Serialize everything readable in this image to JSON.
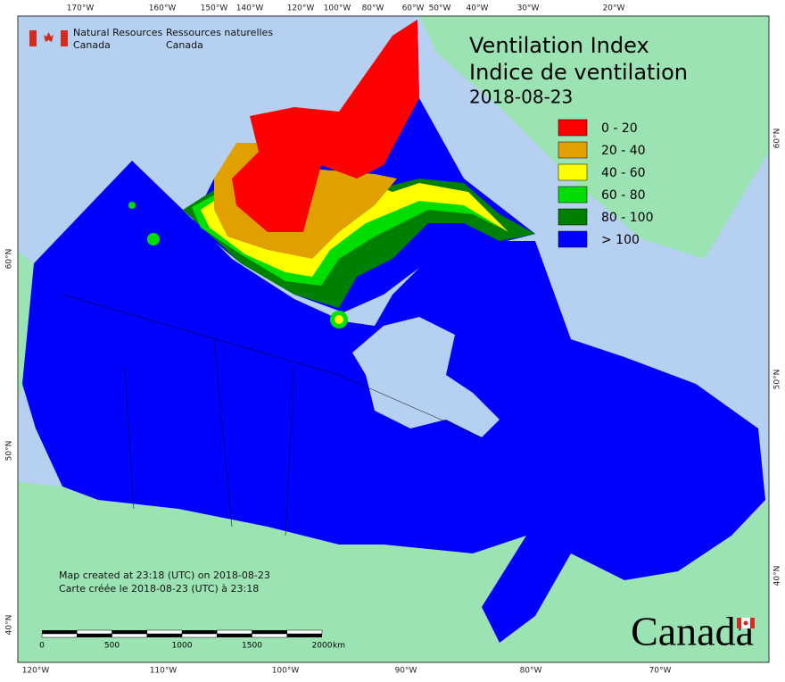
{
  "header": {
    "title_en": "Ventilation Index",
    "title_fr": "Indice de ventilation",
    "date": "2018-08-23"
  },
  "agency": {
    "en_line1": "Natural Resources",
    "en_line2": "Canada",
    "fr_line1": "Ressources naturelles",
    "fr_line2": "Canada"
  },
  "legend": {
    "items": [
      {
        "label": "0 - 20",
        "color": "#ff0000"
      },
      {
        "label": "20 - 40",
        "color": "#e0a000"
      },
      {
        "label": "40 - 60",
        "color": "#ffff00"
      },
      {
        "label": "60 - 80",
        "color": "#00dd00"
      },
      {
        "label": "80 - 100",
        "color": "#008000"
      },
      {
        "label": "> 100",
        "color": "#0000ff"
      }
    ]
  },
  "notes": {
    "line1": "Map created at 23:18 (UTC) on 2018-08-23",
    "line2": "Carte créée le 2018-08-23 (UTC) à 23:18"
  },
  "scale_bar": {
    "ticks": [
      "0",
      "500",
      "1000",
      "1500",
      "2000"
    ],
    "unit": "km"
  },
  "graticule": {
    "top": [
      "170°W",
      "160°W",
      "150°W",
      "140°W",
      "120°W",
      "100°W",
      "80°W",
      "60°W",
      "50°W",
      "40°W",
      "30°W",
      "20°W"
    ],
    "bottom": [
      "120°W",
      "110°W",
      "100°W",
      "90°W",
      "80°W",
      "70°W"
    ],
    "left": [
      "60°N",
      "50°N",
      "40°N"
    ],
    "right": [
      "60°N",
      "50°N",
      "40°N"
    ]
  },
  "wordmark": "Canada"
}
